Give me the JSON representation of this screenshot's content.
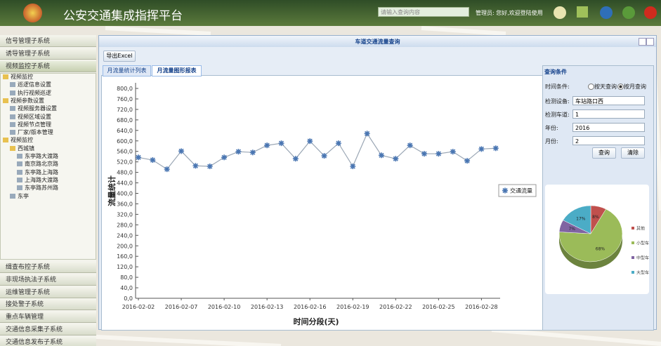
{
  "header": {
    "title": "公安交通集成指挥平台",
    "search_placeholder": "请输入查询内容",
    "welcome": "管理员: 您好,欢迎登陆使用"
  },
  "sidebar": {
    "top": [
      "信号管理子系统",
      "诱导管理子系统",
      "视频监控子系统"
    ],
    "tree": [
      {
        "label": "视频监控",
        "children": [
          {
            "label": "巡逻信息设置"
          },
          {
            "label": "执行视频巡逻"
          }
        ]
      },
      {
        "label": "视频参数设置",
        "children": [
          {
            "label": "视频服务器设置"
          },
          {
            "label": "视频区域设置"
          },
          {
            "label": "视频节点管理"
          },
          {
            "label": "厂家/版本管理"
          }
        ]
      },
      {
        "label": "视频监控",
        "children": [
          {
            "label": "西城镇",
            "children": [
              {
                "label": "东亭路大渡路"
              },
              {
                "label": "南京路北京路"
              },
              {
                "label": "东亭路上海路"
              },
              {
                "label": "上海路大渡路"
              },
              {
                "label": "东亭路苏州路"
              }
            ]
          },
          {
            "label": "东亭"
          }
        ]
      }
    ],
    "bottom": [
      "缉查布控子系统",
      "非现场执法子系统",
      "运维管理子系统",
      "接处警子系统",
      "重点车辆管理",
      "交通信息采集子系统",
      "交通信息发布子系统"
    ]
  },
  "dialog": {
    "title": "车道交通流量查询",
    "export": "导出Excel",
    "tabs": [
      "月流量统计列表",
      "月流量图形报表"
    ]
  },
  "query": {
    "title": "查询条件",
    "time_label": "时间条件:",
    "by_day": "按天查询",
    "by_month": "按月查询",
    "fields": [
      {
        "label": "检测设备:",
        "value": "车站路口西"
      },
      {
        "label": "检测车道:",
        "value": "1"
      },
      {
        "label": "年份:",
        "value": "2016"
      },
      {
        "label": "月份:",
        "value": "2"
      }
    ],
    "search": "查询",
    "clear": "清除"
  },
  "chart_data": [
    {
      "type": "line",
      "x_label": "时间分段(天)",
      "y_label": "流量统计",
      "categories": [
        "2016-02-02",
        null,
        null,
        "2016-02-07",
        null,
        null,
        "2016-02-10",
        null,
        null,
        "2016-02-13",
        null,
        null,
        "2016-02-16",
        null,
        null,
        "2016-02-19",
        null,
        null,
        "2016-02-22",
        null,
        null,
        "2016-02-25",
        null,
        null,
        "2016-02-28",
        null
      ],
      "series": [
        {
          "name": "交通流量",
          "color": "#4a76b2",
          "values": [
            537,
            527,
            492,
            561,
            505,
            503,
            537,
            559,
            556,
            583,
            591,
            532,
            599,
            543,
            591,
            503,
            628,
            545,
            532,
            583,
            551,
            551,
            559,
            524,
            569,
            572
          ]
        }
      ],
      "ylim": [
        0,
        800
      ],
      "yticks": [
        {
          "value": 0,
          "label": "0,0"
        },
        {
          "value": 40,
          "label": "40,0"
        },
        {
          "value": 80,
          "label": "80,0"
        },
        {
          "value": 120,
          "label": "120,0"
        },
        {
          "value": 160,
          "label": "160,0"
        },
        {
          "value": 200,
          "label": "200,0"
        },
        {
          "value": 240,
          "label": "240,0"
        },
        {
          "value": 280,
          "label": "280,0"
        },
        {
          "value": 320,
          "label": "320,0"
        },
        {
          "value": 360,
          "label": "360,0"
        },
        {
          "value": 400,
          "label": "400,0"
        },
        {
          "value": 440,
          "label": "440,0"
        },
        {
          "value": 480,
          "label": "480,0"
        },
        {
          "value": 520,
          "label": "520,0"
        },
        {
          "value": 560,
          "label": "560,0"
        },
        {
          "value": 600,
          "label": "600,0"
        },
        {
          "value": 640,
          "label": "640,0"
        },
        {
          "value": 680,
          "label": "680,0"
        },
        {
          "value": 720,
          "label": "720,0"
        },
        {
          "value": 760,
          "label": "760,0"
        },
        {
          "value": 800,
          "label": "800,0"
        }
      ]
    },
    {
      "type": "pie",
      "categories": [
        "其他",
        "小型车",
        "中型车",
        "大型车"
      ],
      "values": [
        8,
        68,
        7,
        17
      ],
      "value_labels": [
        "8%",
        "68%",
        "7%",
        "17%"
      ],
      "colors": [
        "#c0504d",
        "#9bbb59",
        "#8064a2",
        "#4bacc6"
      ]
    }
  ]
}
